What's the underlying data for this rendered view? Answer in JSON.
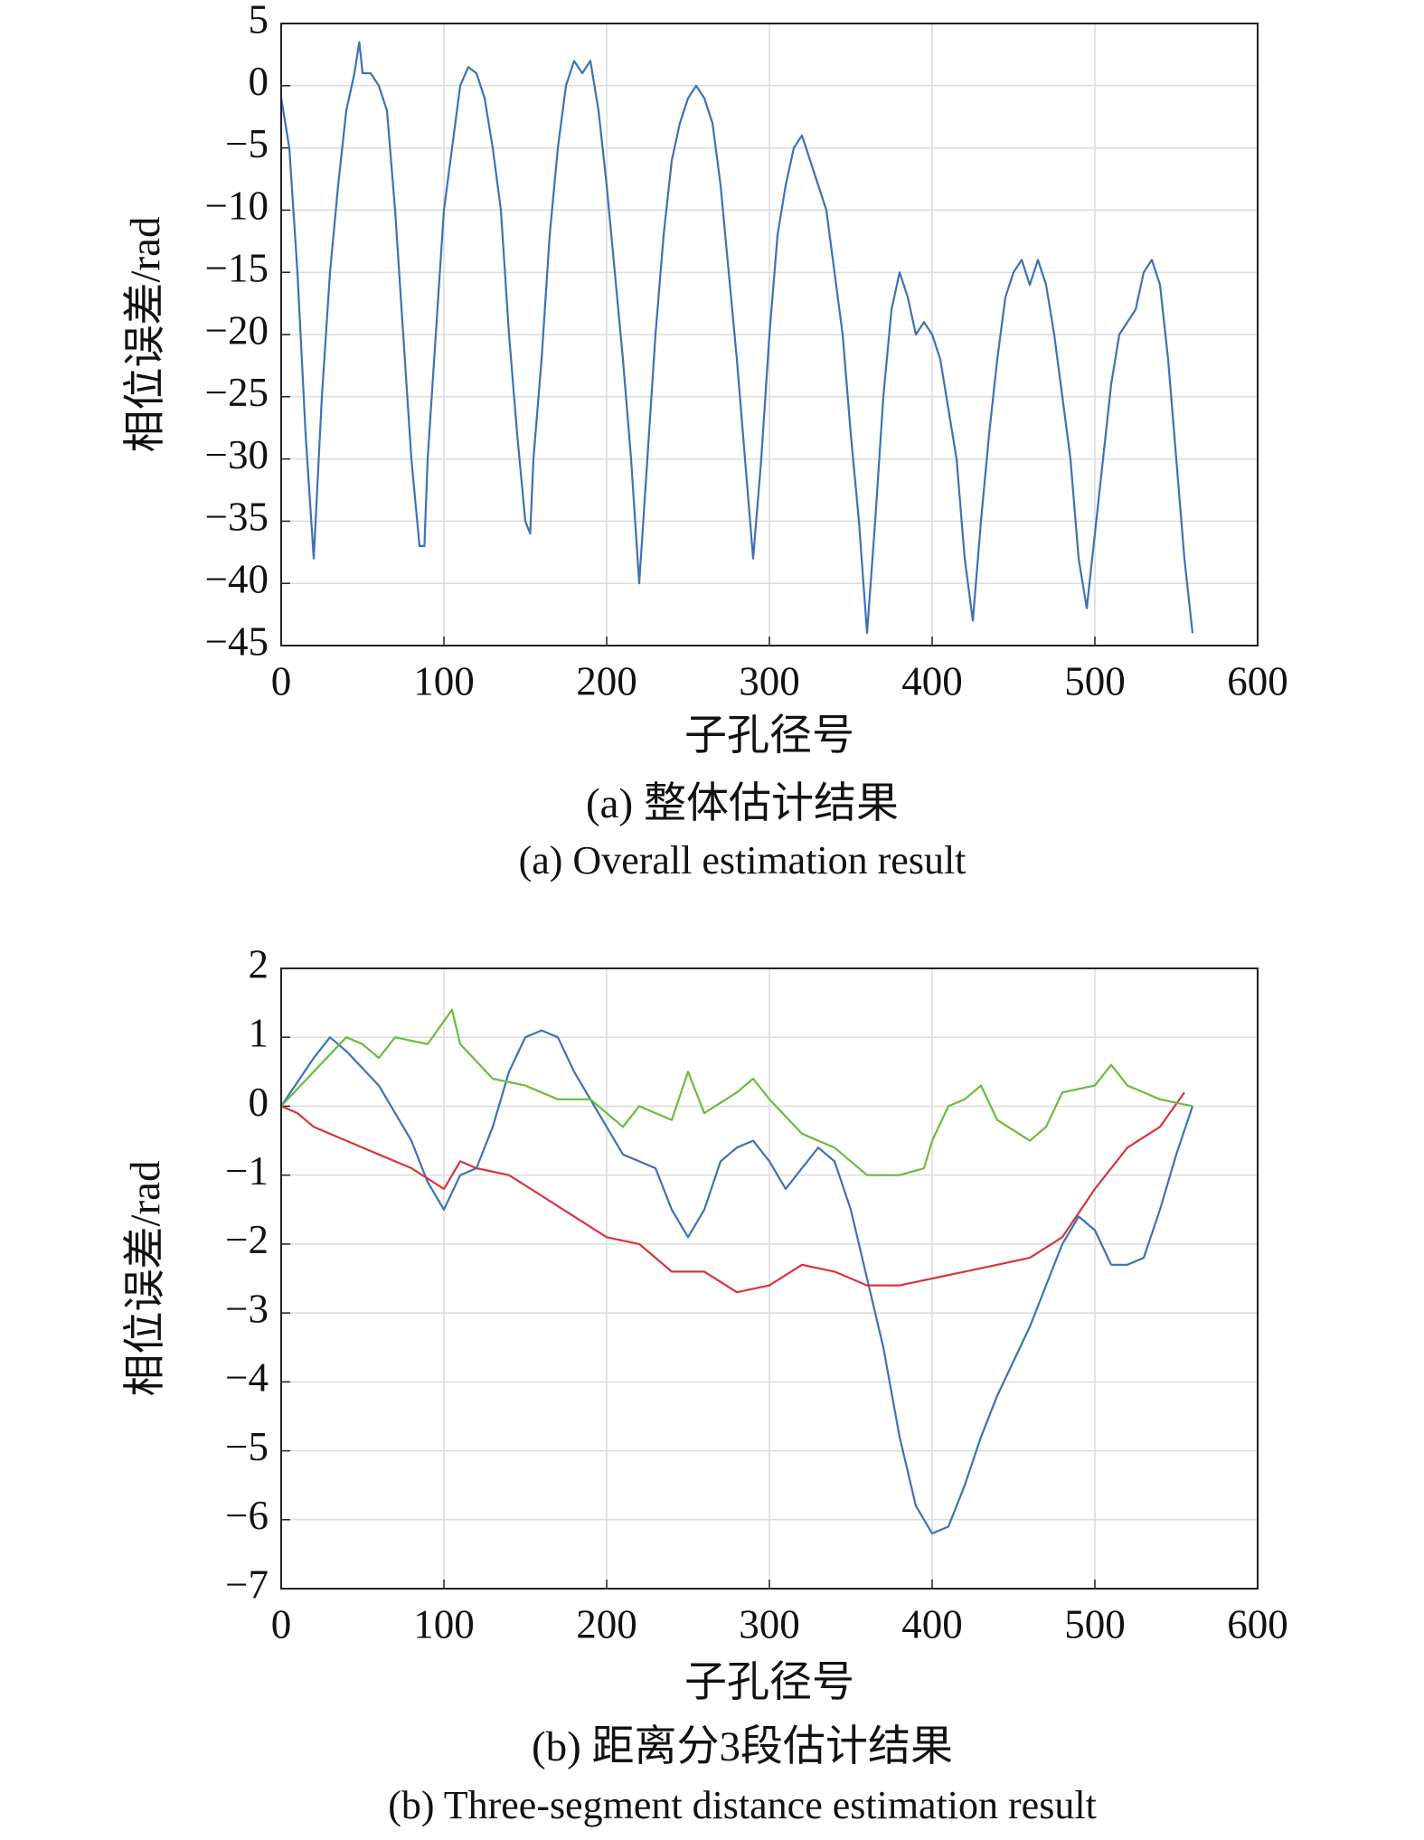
{
  "chart_data": [
    {
      "type": "line",
      "xlabel": "子孔径号",
      "ylabel": "相位误差/rad",
      "title": "(a) 整体估计结果",
      "subtitle": "(a) Overall estimation result",
      "xlim": [
        0,
        600
      ],
      "xticks": [
        0,
        100,
        200,
        300,
        400,
        500,
        600
      ],
      "ylim": [
        -45,
        5
      ],
      "yticks": [
        5,
        0,
        {
          "value": -5,
          "label": "−5"
        },
        {
          "value": -10,
          "label": "−10"
        },
        {
          "value": -15,
          "label": "−15"
        },
        {
          "value": -20,
          "label": "−20"
        },
        {
          "value": -25,
          "label": "−25"
        },
        {
          "value": -30,
          "label": "−30"
        },
        {
          "value": -35,
          "label": "−35"
        },
        {
          "value": -40,
          "label": "−40"
        },
        {
          "value": -45,
          "label": "−45"
        }
      ],
      "grid": true,
      "series": [
        {
          "color": "#3d72b4",
          "x": [
            0,
            5,
            10,
            15,
            20,
            25,
            30,
            35,
            40,
            45,
            48,
            50,
            55,
            60,
            65,
            70,
            75,
            80,
            85,
            88,
            90,
            95,
            100,
            105,
            110,
            115,
            120,
            125,
            130,
            135,
            140,
            145,
            150,
            153,
            155,
            160,
            165,
            170,
            175,
            180,
            185,
            190,
            195,
            200,
            205,
            210,
            215,
            220,
            225,
            230,
            235,
            240,
            245,
            250,
            255,
            260,
            265,
            270,
            275,
            280,
            285,
            290,
            295,
            300,
            305,
            310,
            315,
            320,
            325,
            330,
            335,
            340,
            345,
            350,
            355,
            360,
            365,
            370,
            375,
            380,
            385,
            390,
            395,
            400,
            405,
            410,
            415,
            420,
            425,
            430,
            435,
            440,
            445,
            450,
            455,
            460,
            465,
            470,
            475,
            480,
            485,
            490,
            495,
            500,
            505,
            510,
            515,
            520,
            525,
            530,
            535,
            540,
            545,
            550,
            555,
            560
          ],
          "values": [
            -1,
            -5,
            -15,
            -28,
            -38,
            -25,
            -15,
            -8,
            -2,
            1,
            3.5,
            1,
            1,
            0,
            -2,
            -10,
            -20,
            -30,
            -37,
            -37,
            -30,
            -20,
            -10,
            -5,
            0,
            1.5,
            1,
            -1,
            -5,
            -10,
            -20,
            -28,
            -35,
            -36,
            -30,
            -22,
            -12,
            -5,
            0,
            2,
            1,
            2,
            -2,
            -8,
            -15,
            -22,
            -30,
            -40,
            -30,
            -20,
            -12,
            -6,
            -3,
            -1,
            0,
            -1,
            -3,
            -8,
            -15,
            -22,
            -30,
            -38,
            -30,
            -20,
            -12,
            -8,
            -5,
            -4,
            -6,
            -8,
            -10,
            -15,
            -20,
            -28,
            -35,
            -44,
            -35,
            -25,
            -18,
            -15,
            -17,
            -20,
            -19,
            -20,
            -22,
            -26,
            -30,
            -38,
            -43,
            -35,
            -28,
            -22,
            -17,
            -15,
            -14,
            -16,
            -14,
            -16,
            -20,
            -25,
            -30,
            -38,
            -42,
            -36,
            -30,
            -24,
            -20,
            -19,
            -18,
            -15,
            -14,
            -16,
            -22,
            -30,
            -38,
            -44
          ]
        }
      ]
    },
    {
      "type": "line",
      "xlabel": "子孔径号",
      "ylabel": "相位误差/rad",
      "title": "(b) 距离分3段估计结果",
      "subtitle": "(b) Three-segment distance estimation result",
      "xlim": [
        0,
        600
      ],
      "xticks": [
        0,
        100,
        200,
        300,
        400,
        500,
        600
      ],
      "ylim": [
        -7,
        2
      ],
      "yticks": [
        2,
        1,
        0,
        {
          "value": -1,
          "label": "−1"
        },
        {
          "value": -2,
          "label": "−2"
        },
        {
          "value": -3,
          "label": "−3"
        },
        {
          "value": -4,
          "label": "−4"
        },
        {
          "value": -5,
          "label": "−5"
        },
        {
          "value": -6,
          "label": "−6"
        },
        {
          "value": -7,
          "label": "−7"
        }
      ],
      "grid": true,
      "series": [
        {
          "color": "#3d72b4",
          "x": [
            0,
            20,
            30,
            40,
            60,
            80,
            90,
            100,
            110,
            120,
            130,
            140,
            150,
            160,
            170,
            180,
            190,
            200,
            210,
            230,
            240,
            250,
            260,
            270,
            280,
            290,
            300,
            310,
            320,
            330,
            340,
            350,
            360,
            370,
            380,
            390,
            400,
            410,
            420,
            430,
            440,
            450,
            460,
            470,
            480,
            490,
            500,
            510,
            520,
            530,
            540,
            550,
            560
          ],
          "values": [
            0,
            0.7,
            1,
            0.8,
            0.3,
            -0.5,
            -1.1,
            -1.5,
            -1.0,
            -0.9,
            -0.3,
            0.5,
            1.0,
            1.1,
            1.0,
            0.5,
            0.1,
            -0.3,
            -0.7,
            -0.9,
            -1.5,
            -1.9,
            -1.5,
            -0.8,
            -0.6,
            -0.5,
            -0.8,
            -1.2,
            -0.9,
            -0.6,
            -0.8,
            -1.5,
            -2.5,
            -3.5,
            -4.8,
            -5.8,
            -6.2,
            -6.1,
            -5.5,
            -4.8,
            -4.2,
            -3.7,
            -3.2,
            -2.6,
            -2.0,
            -1.6,
            -1.8,
            -2.3,
            -2.3,
            -2.2,
            -1.5,
            -0.7,
            0
          ]
        },
        {
          "color": "#d8343c",
          "x": [
            0,
            10,
            20,
            40,
            60,
            80,
            100,
            110,
            120,
            140,
            160,
            180,
            200,
            220,
            240,
            260,
            280,
            300,
            320,
            340,
            360,
            380,
            400,
            420,
            440,
            460,
            480,
            500,
            520,
            540,
            555
          ],
          "values": [
            0,
            -0.1,
            -0.3,
            -0.5,
            -0.7,
            -0.9,
            -1.2,
            -0.8,
            -0.9,
            -1.0,
            -1.3,
            -1.6,
            -1.9,
            -2.0,
            -2.4,
            -2.4,
            -2.7,
            -2.6,
            -2.3,
            -2.4,
            -2.6,
            -2.6,
            -2.5,
            -2.4,
            -2.3,
            -2.2,
            -1.9,
            -1.2,
            -0.6,
            -0.3,
            0.2
          ]
        },
        {
          "color": "#6cbb3c",
          "x": [
            0,
            20,
            40,
            50,
            60,
            70,
            90,
            105,
            110,
            130,
            150,
            170,
            190,
            210,
            220,
            240,
            250,
            260,
            280,
            290,
            300,
            320,
            340,
            360,
            380,
            395,
            400,
            410,
            420,
            430,
            440,
            460,
            470,
            480,
            500,
            510,
            520,
            540,
            560
          ],
          "values": [
            0,
            0.5,
            1.0,
            0.9,
            0.7,
            1.0,
            0.9,
            1.4,
            0.9,
            0.4,
            0.3,
            0.1,
            0.1,
            -0.3,
            0,
            -0.2,
            0.5,
            -0.1,
            0.2,
            0.4,
            0.1,
            -0.4,
            -0.6,
            -1.0,
            -1.0,
            -0.9,
            -0.5,
            0,
            0.1,
            0.3,
            -0.2,
            -0.5,
            -0.3,
            0.2,
            0.3,
            0.6,
            0.3,
            0.1,
            0
          ]
        }
      ]
    }
  ]
}
